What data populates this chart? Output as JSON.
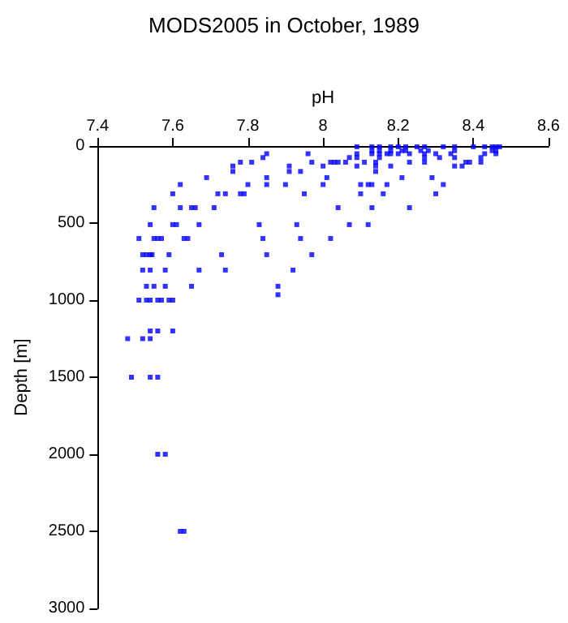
{
  "chart_data": {
    "type": "scatter",
    "title": "MODS2005 in October, 1989",
    "xlabel": "pH",
    "ylabel": "Depth [m]",
    "xlim": [
      7.4,
      8.6
    ],
    "xticks": [
      7.4,
      7.6,
      7.8,
      8,
      8.2,
      8.4,
      8.6
    ],
    "ylim": [
      3000,
      0
    ],
    "yticks": [
      0,
      500,
      1000,
      1500,
      2000,
      2500,
      3000
    ],
    "grid": false,
    "marker": "square",
    "series": [
      {
        "color": "#0000ff",
        "x": [
          8.09,
          8.13,
          8.15,
          8.18,
          8.2,
          8.22,
          8.25,
          8.27,
          8.32,
          8.35,
          8.4,
          8.43,
          8.45,
          8.46,
          8.47,
          8.13,
          8.15,
          8.18,
          8.21,
          8.22,
          8.26,
          8.28,
          8.35,
          8.45,
          8.46,
          7.85,
          7.96,
          8.09,
          8.13,
          8.15,
          8.17,
          8.18,
          8.2,
          8.23,
          8.27,
          8.3,
          8.34,
          8.43,
          8.46,
          7.84,
          8.07,
          8.09,
          8.15,
          8.27,
          8.31,
          8.35,
          8.42,
          7.81,
          7.78,
          7.97,
          8.02,
          8.03,
          8.04,
          8.06,
          8.11,
          8.14,
          8.23,
          8.27,
          8.38,
          8.39,
          8.42,
          7.76,
          7.91,
          8.0,
          8.09,
          8.14,
          8.18,
          8.35,
          8.37,
          7.76,
          7.91,
          7.94,
          8.14,
          7.69,
          7.85,
          8.01,
          8.21,
          8.29,
          7.62,
          7.8,
          7.85,
          7.9,
          8.0,
          8.1,
          8.12,
          8.13,
          8.17,
          8.32,
          7.6,
          7.72,
          7.74,
          7.78,
          7.79,
          7.95,
          8.1,
          8.16,
          8.3,
          7.55,
          7.62,
          7.65,
          7.66,
          7.71,
          8.04,
          8.13,
          8.23,
          7.54,
          7.6,
          7.61,
          7.67,
          7.83,
          7.93,
          8.07,
          8.12,
          7.51,
          7.55,
          7.56,
          7.57,
          7.63,
          7.64,
          7.84,
          7.94,
          8.02,
          7.52,
          7.53,
          7.54,
          7.545,
          7.59,
          7.73,
          7.85,
          7.97,
          7.52,
          7.54,
          7.58,
          7.67,
          7.74,
          7.92,
          7.53,
          7.55,
          7.58,
          7.65,
          7.88,
          7.88,
          7.51,
          7.53,
          7.54,
          7.56,
          7.57,
          7.59,
          7.6,
          7.54,
          7.56,
          7.6,
          7.48,
          7.52,
          7.54,
          7.49,
          7.54,
          7.56,
          7.56,
          7.58,
          7.62,
          7.63
        ],
        "values": [
          5,
          5,
          5,
          5,
          5,
          5,
          5,
          5,
          5,
          5,
          5,
          5,
          5,
          5,
          5,
          30,
          30,
          30,
          30,
          30,
          30,
          30,
          30,
          30,
          30,
          50,
          50,
          50,
          50,
          50,
          50,
          50,
          50,
          50,
          50,
          50,
          50,
          50,
          50,
          75,
          75,
          75,
          75,
          75,
          75,
          75,
          75,
          105,
          105,
          105,
          105,
          105,
          105,
          105,
          105,
          105,
          105,
          105,
          105,
          105,
          105,
          130,
          130,
          130,
          130,
          130,
          130,
          130,
          130,
          165,
          165,
          165,
          165,
          205,
          205,
          205,
          205,
          205,
          250,
          250,
          250,
          250,
          250,
          250,
          250,
          250,
          250,
          250,
          310,
          310,
          310,
          310,
          310,
          310,
          310,
          310,
          310,
          400,
          400,
          400,
          400,
          400,
          400,
          400,
          400,
          510,
          510,
          510,
          510,
          510,
          510,
          510,
          510,
          600,
          600,
          600,
          600,
          600,
          600,
          600,
          600,
          600,
          705,
          705,
          705,
          705,
          705,
          705,
          705,
          705,
          805,
          805,
          805,
          805,
          805,
          805,
          910,
          910,
          910,
          910,
          910,
          965,
          1000,
          1000,
          1000,
          1000,
          1000,
          1000,
          1000,
          1200,
          1200,
          1200,
          1250,
          1250,
          1250,
          1500,
          1500,
          1500,
          2000,
          2000,
          2500,
          2500
        ]
      }
    ]
  }
}
